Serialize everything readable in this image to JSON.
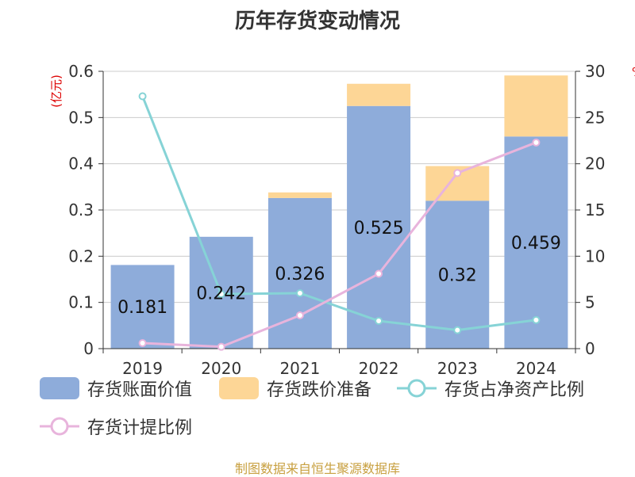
{
  "chart_data": {
    "type": "bar",
    "title": "历年存货变动情况",
    "categories": [
      "2019",
      "2020",
      "2021",
      "2022",
      "2023",
      "2024"
    ],
    "y_left": {
      "unit": "(亿元)",
      "min": 0,
      "max": 0.6,
      "ticks": [
        "0",
        "0.1",
        "0.2",
        "0.3",
        "0.4",
        "0.5",
        "0.6"
      ]
    },
    "y_right": {
      "unit": "%",
      "min": 0,
      "max": 30,
      "ticks": [
        "0",
        "5",
        "10",
        "15",
        "20",
        "25",
        "30"
      ]
    },
    "series": [
      {
        "name": "存货账面价值",
        "type": "bar",
        "stack": "inventory",
        "axis": "left",
        "color": "#8eacda",
        "values": [
          0.181,
          0.242,
          0.326,
          0.525,
          0.32,
          0.459
        ],
        "labels": [
          "0.181",
          "0.242",
          "0.326",
          "0.525",
          "0.32",
          "0.459"
        ]
      },
      {
        "name": "存货跌价准备",
        "type": "bar",
        "stack": "inventory",
        "axis": "left",
        "color": "#fdd696",
        "values": [
          0,
          0,
          0.012,
          0.048,
          0.075,
          0.132
        ]
      },
      {
        "name": "存货占净资产比例",
        "type": "line",
        "axis": "right",
        "color": "#86d3d6",
        "values": [
          27.3,
          5.9,
          6.0,
          3.0,
          2.0,
          3.1
        ]
      },
      {
        "name": "存货计提比例",
        "type": "line",
        "axis": "right",
        "color": "#e8b4dc",
        "values": [
          0.6,
          0.2,
          3.6,
          8.1,
          19.0,
          22.3
        ]
      }
    ],
    "grid": true,
    "legend_position": "bottom"
  },
  "footer": {
    "source": "制图数据来自恒生聚源数据库"
  }
}
